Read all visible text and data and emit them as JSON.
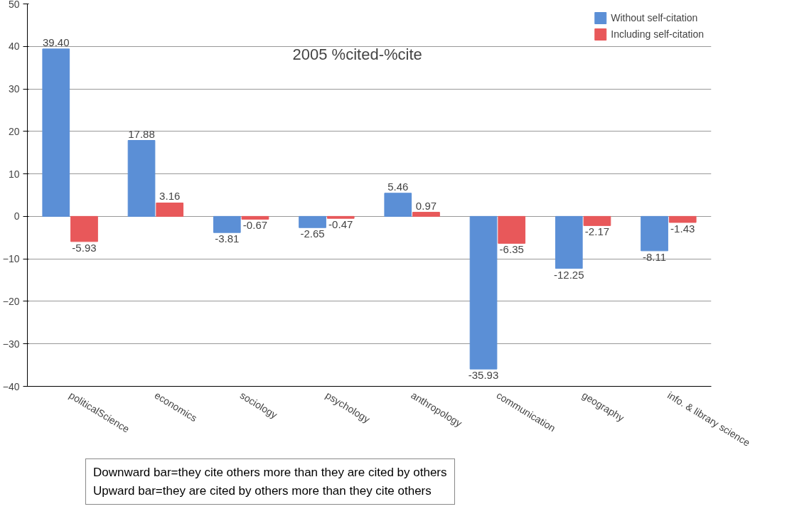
{
  "chart_data": {
    "type": "bar",
    "title": "2005 %cited-%cite",
    "categories": [
      "politicalScience",
      "economics",
      "sociology",
      "psychology",
      "anthropology",
      "communication",
      "geography",
      "info. & library science"
    ],
    "series": [
      {
        "name": "Without self-citation",
        "color": "#5b8fd6",
        "values": [
          39.4,
          17.88,
          -3.81,
          -2.65,
          5.46,
          -35.93,
          -12.25,
          -8.11
        ],
        "value_labels": [
          "39.40",
          "17.88",
          "-3.81",
          "-2.65",
          "5.46",
          "-35.93",
          "-12.25",
          "-8.11"
        ]
      },
      {
        "name": "Including self-citation",
        "color": "#e8585a",
        "values": [
          -5.93,
          3.16,
          -0.67,
          -0.47,
          0.97,
          -6.35,
          -2.17,
          -1.43
        ],
        "value_labels": [
          "-5.93",
          "3.16",
          "-0.67",
          "-0.47",
          "0.97",
          "-6.35",
          "-2.17",
          "-1.43"
        ]
      }
    ],
    "ylim": [
      -40,
      50
    ],
    "yticks": [
      -40,
      -30,
      -20,
      -10,
      0,
      10,
      20,
      30,
      40,
      50
    ],
    "grid": "y",
    "legend": "top right",
    "annotations": [
      "Downward bar=they cite others more than they are cited by others",
      "Upward bar=they are cited by others more than they cite others"
    ]
  }
}
